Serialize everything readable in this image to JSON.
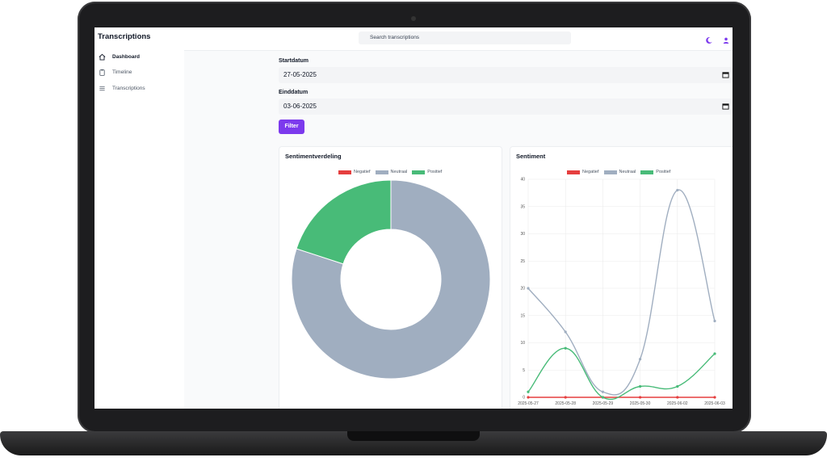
{
  "app": {
    "title": "Transcriptions"
  },
  "sidebar": {
    "items": [
      {
        "label": "Dashboard",
        "icon": "home-icon",
        "active": true
      },
      {
        "label": "Timeline",
        "icon": "clipboard-icon",
        "active": false
      },
      {
        "label": "Transcriptions",
        "icon": "list-icon",
        "active": false
      }
    ]
  },
  "header": {
    "search_placeholder": "Search transcriptions",
    "theme_icon": "moon-icon",
    "user_icon": "user-icon"
  },
  "filters": {
    "start_label": "Startdatum",
    "start_value": "27-05-2025",
    "end_label": "Einddatum",
    "end_value": "03-06-2025",
    "button_label": "Filter"
  },
  "colors": {
    "accent": "#7c3aed",
    "negatief": "#e53e3e",
    "neutraal": "#a0aec0",
    "positief": "#48bb78"
  },
  "chart_data": [
    {
      "type": "pie",
      "variant": "doughnut",
      "title": "Sentimentverdeling",
      "labels": [
        "Negatief",
        "Neutraal",
        "Positief"
      ],
      "values": [
        0,
        80,
        20
      ],
      "legend": "top"
    },
    {
      "type": "line",
      "title": "Sentiment",
      "x": [
        "2025-05-27",
        "2025-05-28",
        "2025-05-29",
        "2025-05-30",
        "2025-06-02",
        "2025-06-03"
      ],
      "series": [
        {
          "name": "Negatief",
          "values": [
            0,
            0,
            0,
            0,
            0,
            0
          ]
        },
        {
          "name": "Neutraal",
          "values": [
            20,
            12,
            1,
            7,
            38,
            14
          ]
        },
        {
          "name": "Positief",
          "values": [
            1,
            9,
            0,
            2,
            2,
            8
          ]
        }
      ],
      "ylim": [
        0,
        40
      ],
      "yticks": [
        0,
        5,
        10,
        15,
        20,
        25,
        30,
        35,
        40
      ],
      "grid": true,
      "legend": "top"
    }
  ]
}
